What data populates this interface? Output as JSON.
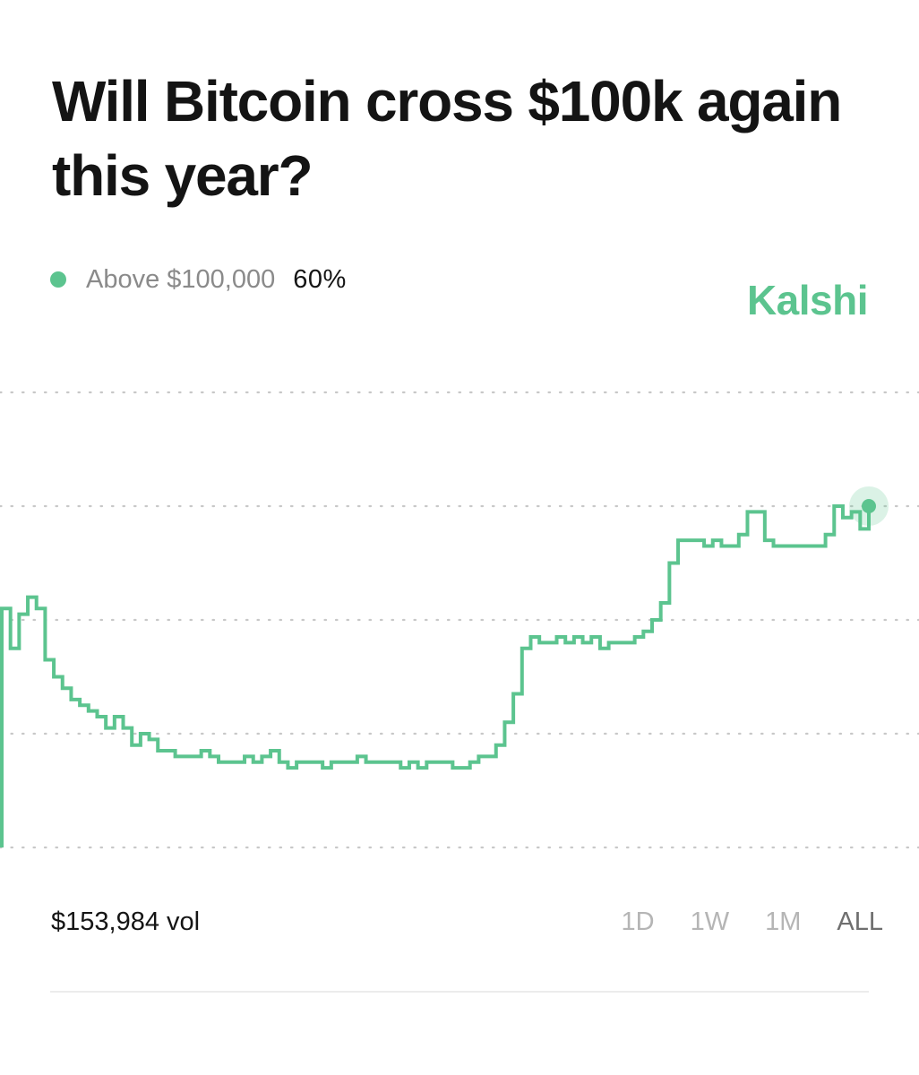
{
  "title": "Will Bitcoin cross $100k again this year?",
  "legend": {
    "label": "Above $100,000",
    "value": "60%"
  },
  "brand": "Kalshi",
  "volume": "$153,984 vol",
  "ranges": [
    {
      "label": "1D",
      "active": false
    },
    {
      "label": "1W",
      "active": false
    },
    {
      "label": "1M",
      "active": false
    },
    {
      "label": "ALL",
      "active": true
    }
  ],
  "colors": {
    "series": "#5cc48f",
    "grid": "#c8c8c8"
  },
  "chart_data": {
    "type": "line",
    "grid": true,
    "gridlines": [
      80,
      60,
      40,
      20,
      0
    ],
    "ylim": [
      0,
      80
    ],
    "series": [
      {
        "x": [
          0,
          1,
          2,
          3,
          4,
          5,
          6,
          7,
          8,
          9,
          10,
          11,
          12,
          13,
          14,
          15,
          16,
          17,
          18,
          19,
          20,
          21,
          22,
          23,
          24,
          25,
          26,
          27,
          28,
          29,
          30,
          31,
          32,
          33,
          34,
          35,
          36,
          37,
          38,
          39,
          40,
          41,
          42,
          43,
          44,
          45,
          46,
          47,
          48,
          49,
          50,
          51,
          52,
          53,
          54,
          55,
          56,
          57,
          58,
          59,
          60,
          61,
          62,
          63,
          64,
          65,
          66,
          67,
          68,
          69,
          70,
          71,
          72,
          73,
          74,
          75,
          76,
          77,
          78,
          79,
          80,
          81,
          82,
          83,
          84,
          85,
          86,
          87,
          88,
          89,
          90,
          91,
          92,
          93,
          94,
          95,
          96,
          97,
          98,
          99,
          100
        ],
        "y": [
          42,
          35,
          41,
          44,
          42,
          33,
          30,
          28,
          26,
          25,
          24,
          23,
          21,
          23,
          21,
          18,
          20,
          19,
          17,
          17,
          16,
          16,
          16,
          17,
          16,
          15,
          15,
          15,
          16,
          15,
          16,
          17,
          15,
          14,
          15,
          15,
          15,
          14,
          15,
          15,
          15,
          16,
          15,
          15,
          15,
          15,
          14,
          15,
          14,
          15,
          15,
          15,
          14,
          14,
          15,
          16,
          16,
          18,
          22,
          27,
          35,
          37,
          36,
          36,
          37,
          36,
          37,
          36,
          37,
          35,
          36,
          36,
          36,
          37,
          38,
          40,
          43,
          50,
          54,
          54,
          54,
          53,
          54,
          53,
          53,
          55,
          59,
          59,
          54,
          53,
          53,
          53,
          53,
          53,
          53,
          55,
          60,
          58,
          59,
          56,
          60
        ]
      }
    ]
  }
}
